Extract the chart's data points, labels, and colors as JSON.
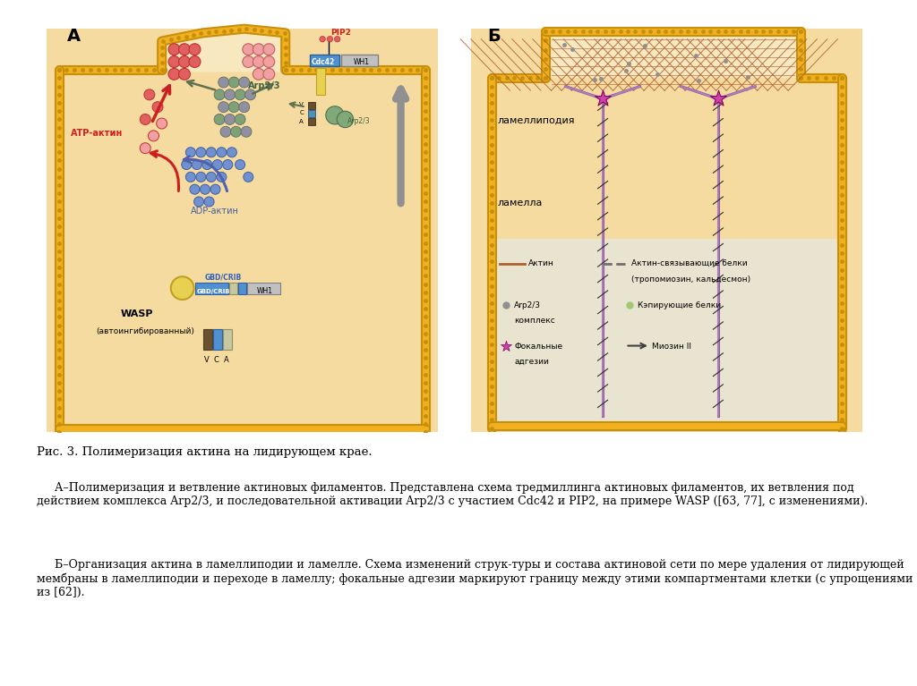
{
  "title_A": "А",
  "title_B": "Б",
  "fig_caption": "Рис. 3. Полимеризация актина на лидирующем крае.",
  "para1": "     А–Полимеризация и ветвление актиновых филаментов. Представлена схема тредмиллинга актиновых филаментов, их ветвления под действием комплекса Arp2/3, и последовательной активации Arp2/3 с участием Cdc42 и PIP2, на примере WASP ([63, 77], с изменениями).",
  "para2": "     Б–Организация актина в ламеллиподии и ламелле. Схема изменений струк-туры и состава актиновой сети по мере удаления от лидирующей мембраны в ламеллиподии и переходе в ламеллу; фокальные адгезии маркируют границу между этими компартментами клетки (с упрощениями из [62]).",
  "panel_bg": "#f5dba0",
  "panel_border": "#d4a540",
  "protrusion_bg": "#f8e8c0",
  "lamella_bg": "#e8e4d0",
  "membrane_outer": "#d4a030",
  "membrane_inner": "#f0b830",
  "atp_fill": "#e06060",
  "atp_edge": "#c03030",
  "atp_light": "#f0a0a0",
  "adp_fill": "#7090d0",
  "adp_edge": "#4060a0",
  "arp_gray": "#9090a0",
  "arp_green": "#80a870",
  "red_arrow": "#cc2020",
  "blue_arrow": "#5060b0",
  "green_arrow": "#607050",
  "gray_arrow": "#909090",
  "wasp_yellow": "#e8d050",
  "wasp_blue": "#4080c0",
  "wasp_green_blue": "#5090b0",
  "wasp_dark_brown": "#60504080",
  "actin_brown": "#b06030",
  "focal_pink": "#cc44aa",
  "binding_gray": "#707070"
}
